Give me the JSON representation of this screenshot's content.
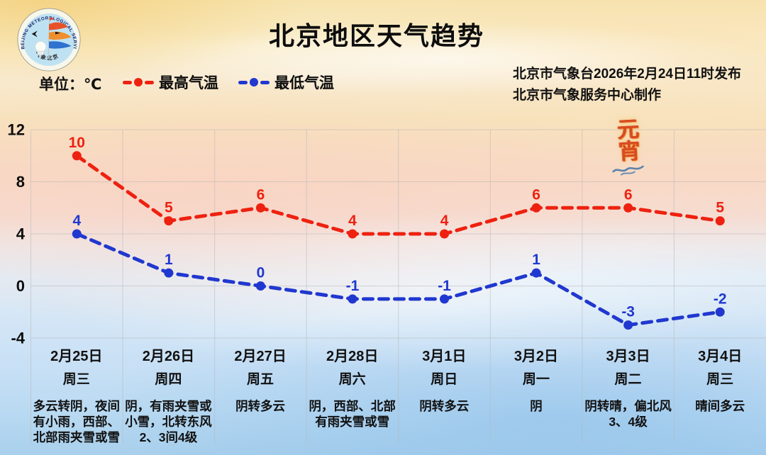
{
  "header": {
    "title": "北京地区天气趋势",
    "unit_label": "单位：℃",
    "publisher_line1": "北京市气象台2026年2月24日11时发布",
    "publisher_line2": "北京市气象服务中心制作",
    "logo": {
      "ring_text": "BEIJING METEOROLOGICAL SERVICE",
      "bottom_text": "气象北京"
    }
  },
  "decoration": {
    "festival_text": "元宵"
  },
  "chart_data": {
    "type": "line",
    "title": "北京地区天气趋势",
    "unit": "℃",
    "x": [
      "2月25日",
      "2月26日",
      "2月27日",
      "2月28日",
      "3月1日",
      "3月2日",
      "3月3日",
      "3月4日"
    ],
    "weekdays": [
      "周三",
      "周四",
      "周五",
      "周六",
      "周日",
      "周一",
      "周二",
      "周三"
    ],
    "forecasts": [
      "多云转阴，夜间有小雨，西部、北部雨夹雪或雪",
      "阴，有雨夹雪或小雪，北转东风2、3间4级",
      "阴转多云",
      "阴，西部、北部有雨夹雪或雪",
      "阴转多云",
      "阴",
      "阴转晴，偏北风3、4级",
      "晴间多云"
    ],
    "series": [
      {
        "name": "最高气温",
        "color": "#ee2110",
        "values": [
          10,
          5,
          6,
          4,
          4,
          6,
          6,
          5
        ]
      },
      {
        "name": "最低气温",
        "color": "#2038cf",
        "values": [
          4,
          1,
          0,
          -1,
          -1,
          1,
          -3,
          -2
        ]
      }
    ],
    "ylim": [
      -4,
      12
    ],
    "yticks": [
      12,
      8,
      4,
      0,
      -4
    ],
    "grid": true,
    "line_style": "dashed",
    "legend_position": "top-left"
  }
}
